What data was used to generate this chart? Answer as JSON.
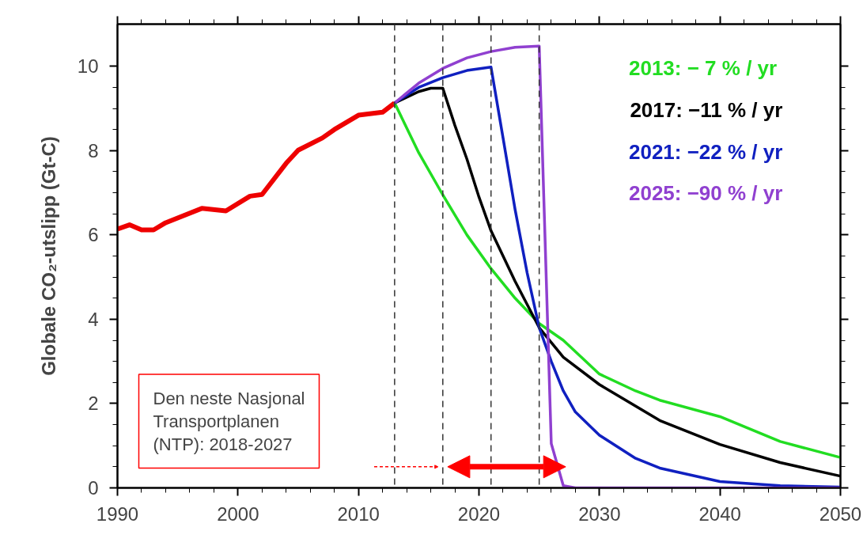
{
  "chart_data": {
    "type": "line",
    "ylabel": "Globale CO₂-utslipp (Gt-C)",
    "xlim": [
      1990,
      2050
    ],
    "xticks": [
      1990,
      2000,
      2010,
      2020,
      2030,
      2040,
      2050
    ],
    "ylim": [
      0,
      11
    ],
    "yticks": [
      0,
      2,
      4,
      6,
      8,
      10
    ],
    "grid": false,
    "legend": "top right",
    "marker": "none",
    "line_style": "solid",
    "series": [
      {
        "color": "#ee0000",
        "x": [
          1990,
          1991,
          1992,
          1993,
          1994,
          1997,
          1999,
          2001,
          2002,
          2004,
          2005,
          2007,
          2008,
          2010,
          2012,
          2013
        ],
        "values": [
          6.14,
          6.24,
          6.12,
          6.12,
          6.29,
          6.63,
          6.57,
          6.92,
          6.96,
          7.7,
          8.01,
          8.3,
          8.5,
          8.84,
          8.91,
          9.13
        ]
      },
      {
        "name": "2013: −  7 % / yr",
        "color": "#22dd22",
        "x": [
          2013,
          2015,
          2017,
          2019,
          2021,
          2023,
          2025,
          2027,
          2030,
          2033,
          2035,
          2040,
          2045,
          2050
        ],
        "values": [
          9.13,
          7.95,
          6.95,
          6.0,
          5.2,
          4.5,
          3.9,
          3.5,
          2.7,
          2.3,
          2.08,
          1.69,
          1.1,
          0.72
        ]
      },
      {
        "name": "2017: −11 % / yr",
        "color": "#000000",
        "x": [
          2013,
          2015,
          2016,
          2017,
          2018,
          2019,
          2020,
          2021,
          2023,
          2025,
          2027,
          2030,
          2035,
          2040,
          2045,
          2050
        ],
        "values": [
          9.13,
          9.4,
          9.48,
          9.48,
          8.6,
          7.8,
          6.9,
          6.1,
          4.9,
          3.8,
          3.1,
          2.45,
          1.6,
          1.03,
          0.6,
          0.28
        ]
      },
      {
        "name": "2021: −22 % / yr",
        "color": "#1020c0",
        "x": [
          2013,
          2015,
          2017,
          2019,
          2021,
          2022,
          2023,
          2024,
          2025,
          2026,
          2027,
          2028,
          2030,
          2033,
          2035,
          2040,
          2045,
          2050
        ],
        "values": [
          9.13,
          9.5,
          9.73,
          9.9,
          9.98,
          8.3,
          6.6,
          5.1,
          3.8,
          3.0,
          2.3,
          1.8,
          1.25,
          0.7,
          0.47,
          0.15,
          0.05,
          0.02
        ]
      },
      {
        "name": "2025: −90 % / yr",
        "color": "#9040d0",
        "x": [
          2013,
          2015,
          2017,
          2019,
          2021,
          2023,
          2025,
          2026,
          2027,
          2028,
          2050
        ],
        "values": [
          9.13,
          9.6,
          9.95,
          10.2,
          10.35,
          10.45,
          10.48,
          1.05,
          0.05,
          0,
          0
        ]
      }
    ],
    "ref_lines": [
      {
        "axis": "x",
        "value": 2013,
        "color": "#333333",
        "line_style": "dashed"
      },
      {
        "axis": "x",
        "value": 2017,
        "color": "#333333",
        "line_style": "dashed"
      },
      {
        "axis": "x",
        "value": 2021,
        "color": "#333333",
        "line_style": "dashed"
      },
      {
        "axis": "x",
        "value": 2025,
        "color": "#333333",
        "line_style": "dashed"
      }
    ],
    "annotations": [
      "Den neste Nasjonal\nTransportplanen\n(NTP): 2018-2027"
    ]
  }
}
